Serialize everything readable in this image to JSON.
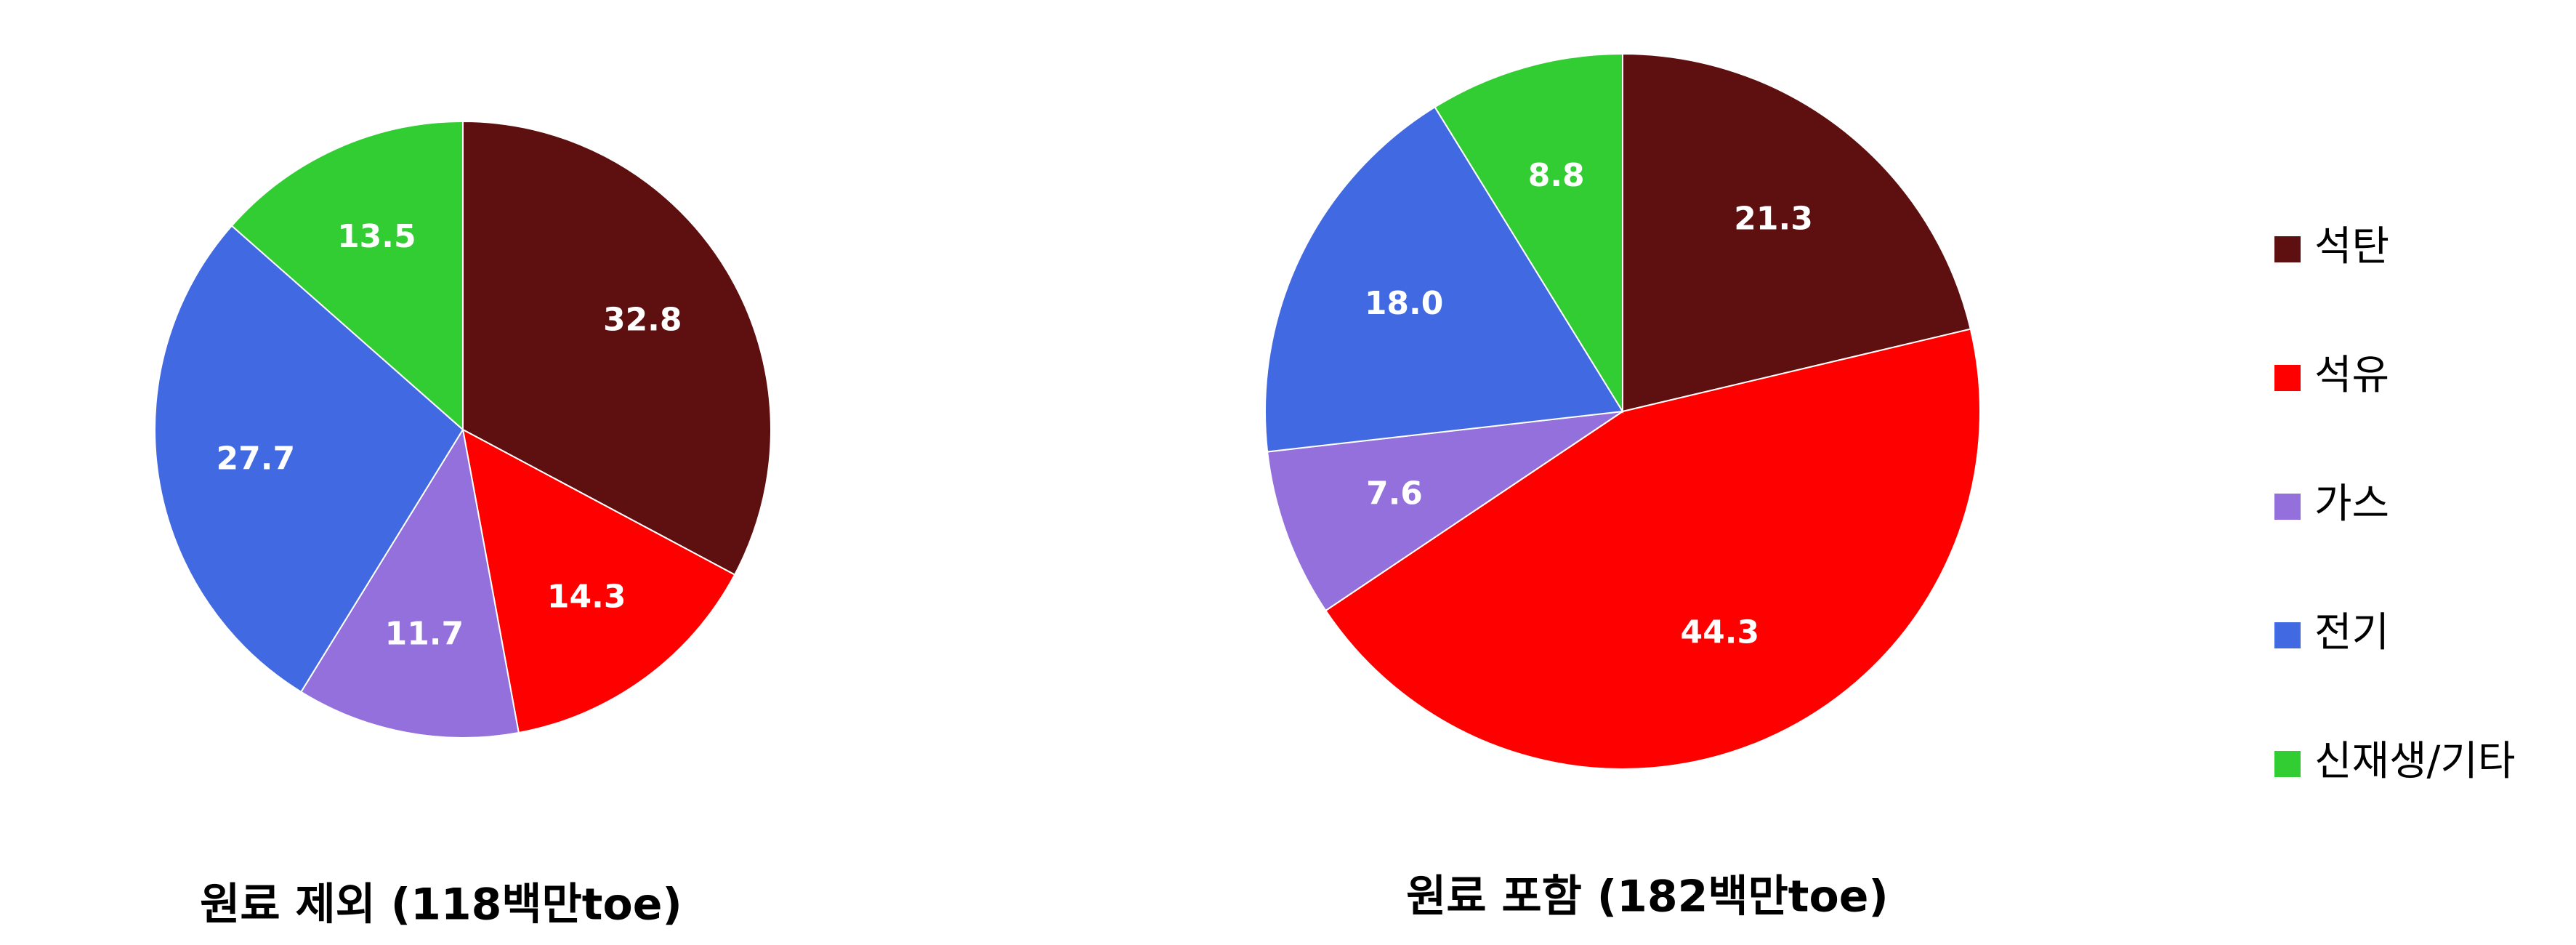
{
  "chart_data": [
    {
      "type": "pie",
      "title": "원료 제외 (118백만toe)",
      "categories": [
        "석탄",
        "석유",
        "가스",
        "전기",
        "신재생/기타"
      ],
      "values": [
        32.8,
        14.3,
        11.7,
        27.7,
        13.5
      ],
      "colors": [
        "#5e0f10",
        "#ff0000",
        "#9370db",
        "#4169e1",
        "#32cd32"
      ]
    },
    {
      "type": "pie",
      "title": "원료 포함 (182백만toe)",
      "categories": [
        "석탄",
        "석유",
        "가스",
        "전기",
        "신재생/기타"
      ],
      "values": [
        21.3,
        44.3,
        7.6,
        18,
        8.8
      ],
      "value_labels": [
        "21.3",
        "44.3",
        "7.6",
        "18.0",
        "8.8"
      ],
      "colors": [
        "#5e0f10",
        "#ff0000",
        "#9370db",
        "#4169e1",
        "#32cd32"
      ]
    }
  ]
}
